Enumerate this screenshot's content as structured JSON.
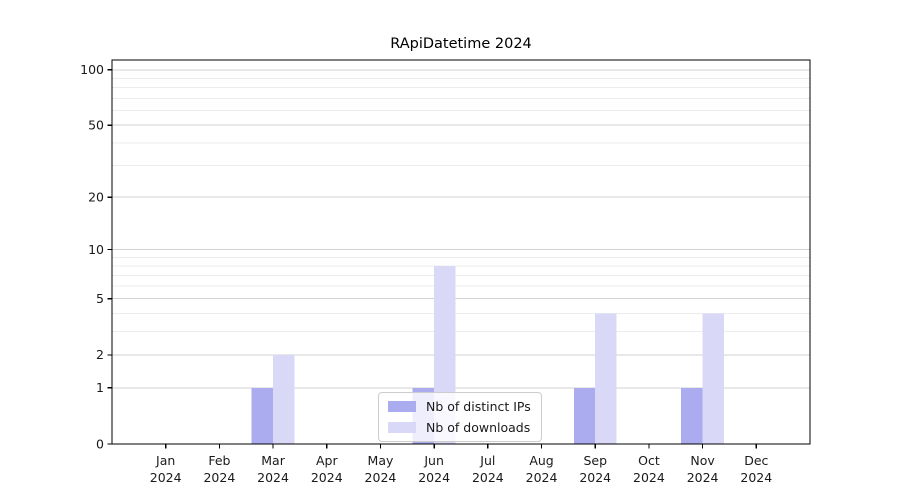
{
  "chart_data": {
    "type": "bar",
    "title": "RApiDatetime 2024",
    "categories": [
      "Jan",
      "Feb",
      "Mar",
      "Apr",
      "May",
      "Jun",
      "Jul",
      "Aug",
      "Sep",
      "Oct",
      "Nov",
      "Dec"
    ],
    "year": "2024",
    "series": [
      {
        "name": "Nb of distinct IPs",
        "color": "#ababf0",
        "values": [
          0,
          0,
          1,
          0,
          0,
          1,
          0,
          0,
          1,
          0,
          1,
          0
        ]
      },
      {
        "name": "Nb of downloads",
        "color": "#d9d9f7",
        "values": [
          0,
          0,
          2,
          0,
          0,
          8,
          0,
          0,
          4,
          0,
          4,
          0
        ]
      }
    ],
    "xlabel": "",
    "ylabel": "",
    "yscale": "log1p",
    "ylim": [
      0,
      113
    ],
    "y_ticks": [
      0,
      1,
      2,
      5,
      10,
      20,
      50,
      100
    ],
    "y_minor_ticks": [
      3,
      4,
      6,
      7,
      8,
      9,
      30,
      40,
      60,
      70,
      80,
      90
    ],
    "grid": true,
    "legend_position": "lower center",
    "colors": {
      "background": "#ffffff",
      "spine": "#000000",
      "tick_text": "#1a1a1a",
      "grid_major": "#d2d2d2",
      "grid_minor": "#ececec",
      "legend_border": "#cccccc"
    }
  }
}
